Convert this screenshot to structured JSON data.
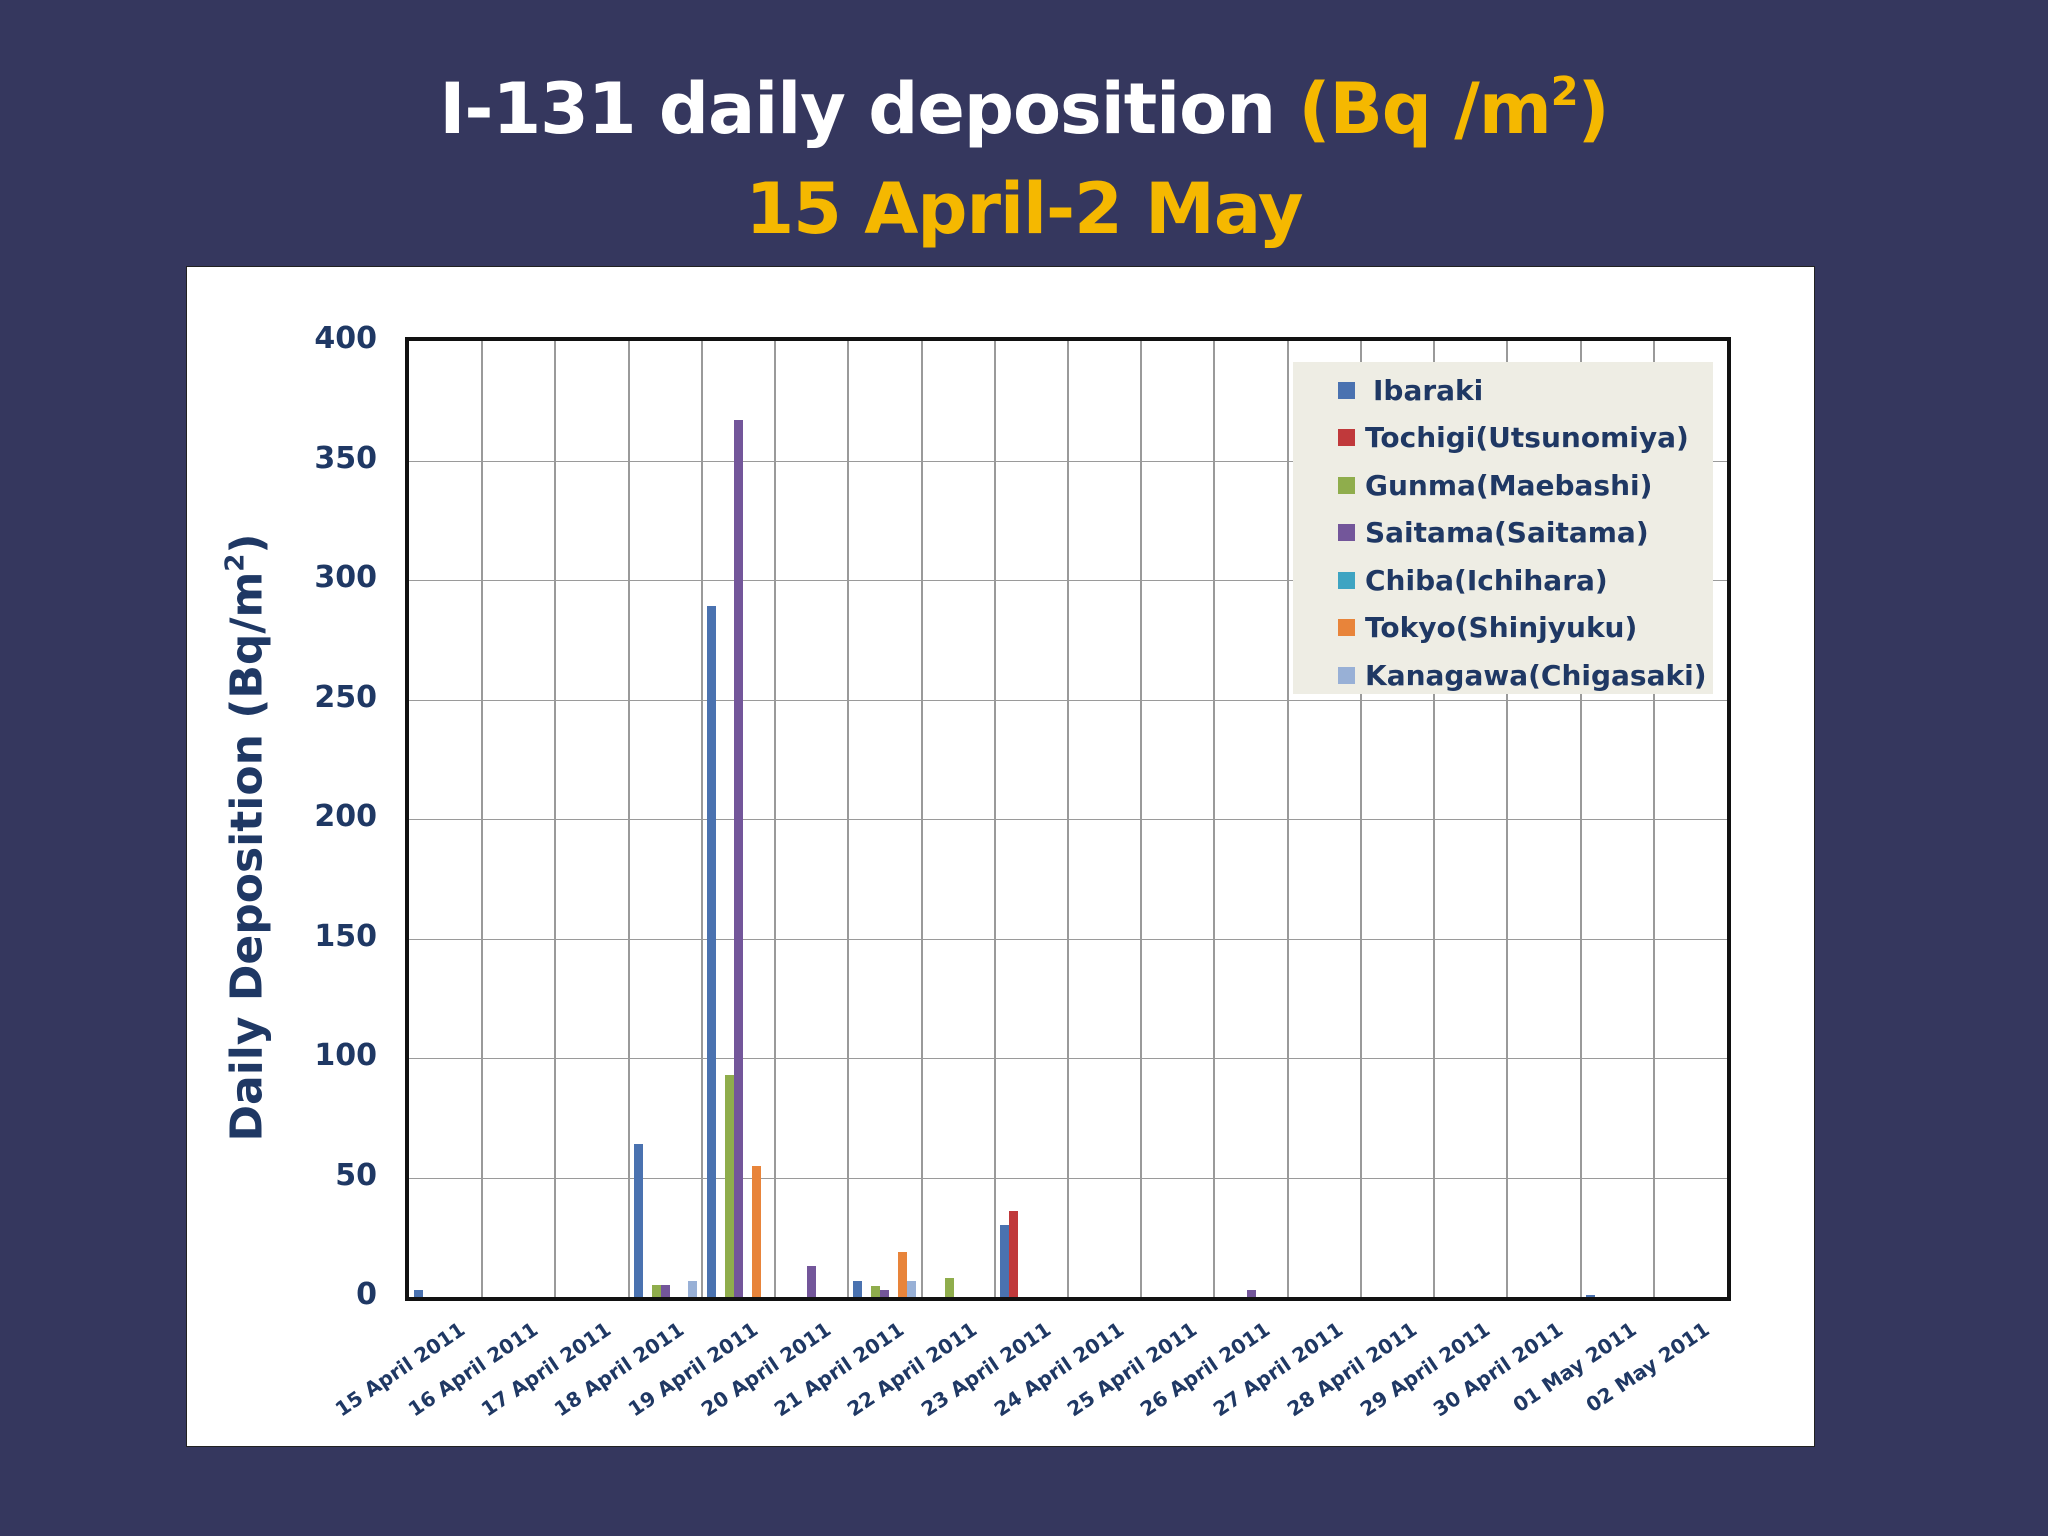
{
  "slide": {
    "title_main": "I-131 daily deposition ",
    "title_unit_open": "(Bq /m",
    "title_unit_sup": "2",
    "title_unit_close": ")",
    "subtitle": "15 April-2 May",
    "background_color": "#35375e",
    "accent_color": "#f5b800"
  },
  "chart_data": {
    "type": "bar",
    "title": "I-131 daily deposition (Bq /m2) 15 April-2 May",
    "xlabel": "",
    "ylabel": "Daily Deposition (Bq/m2)",
    "ylabel_text": "Daily Deposition (Bq/m",
    "ylabel_sup": "2",
    "ylabel_close": ")",
    "ylim": [
      0,
      400
    ],
    "yticks": [
      0,
      50,
      100,
      150,
      200,
      250,
      300,
      350,
      400
    ],
    "grid": true,
    "legend_position": "upper right (inside)",
    "categories": [
      "15 April 2011",
      "16 April 2011",
      "17 April 2011",
      "18 April 2011",
      "19 April 2011",
      "20 April 2011",
      "21 April 2011",
      "22 April 2011",
      "23 April 2011",
      "24 April 2011",
      "25 April 2011",
      "26 April 2011",
      "27 April 2011",
      "28 April 2011",
      "29 April 2011",
      "30 April 2011",
      "01 May 2011",
      "02 May 2011"
    ],
    "series": [
      {
        "name": "Ibaraki",
        "color": "#4a72b0",
        "values": [
          3,
          0,
          0,
          64,
          289,
          0,
          6.5,
          0,
          30,
          0,
          0,
          0,
          0,
          0,
          0,
          0,
          0.5,
          0
        ]
      },
      {
        "name": "Tochigi(Utsunomiya)",
        "color": "#c0393b",
        "values": [
          0,
          0,
          0,
          0,
          0,
          0,
          0,
          0,
          36,
          0,
          0,
          0,
          0,
          0,
          0,
          0,
          0,
          0
        ]
      },
      {
        "name": "Gunma(Maebashi)",
        "color": "#8fad4c",
        "values": [
          0,
          0,
          0,
          5,
          93,
          0,
          4.5,
          8,
          0,
          0,
          0,
          0,
          0,
          0,
          0,
          0,
          0,
          0
        ]
      },
      {
        "name": "Saitama(Saitama)",
        "color": "#73569a",
        "values": [
          0,
          0,
          0,
          5,
          367,
          13,
          3,
          0,
          0,
          0,
          0,
          3,
          0,
          0,
          0,
          0,
          0,
          0
        ]
      },
      {
        "name": "Chiba(Ichihara)",
        "color": "#3ea4c2",
        "values": [
          0,
          0,
          0,
          0,
          0,
          0,
          0,
          0,
          0,
          0,
          0,
          0,
          0,
          0,
          0,
          0,
          0,
          0
        ]
      },
      {
        "name": "Tokyo(Shinjyuku)",
        "color": "#e8843a",
        "values": [
          0,
          0,
          0,
          0,
          55,
          0,
          19,
          0,
          0,
          0,
          0,
          0,
          0,
          0,
          0,
          0,
          0,
          0
        ]
      },
      {
        "name": "Kanagawa(Chigasaki)",
        "color": "#98b0d6",
        "values": [
          0,
          0,
          0,
          6.5,
          0,
          0,
          6.5,
          0,
          0,
          0,
          0,
          0,
          0,
          0,
          0,
          0,
          0,
          0
        ]
      }
    ]
  }
}
